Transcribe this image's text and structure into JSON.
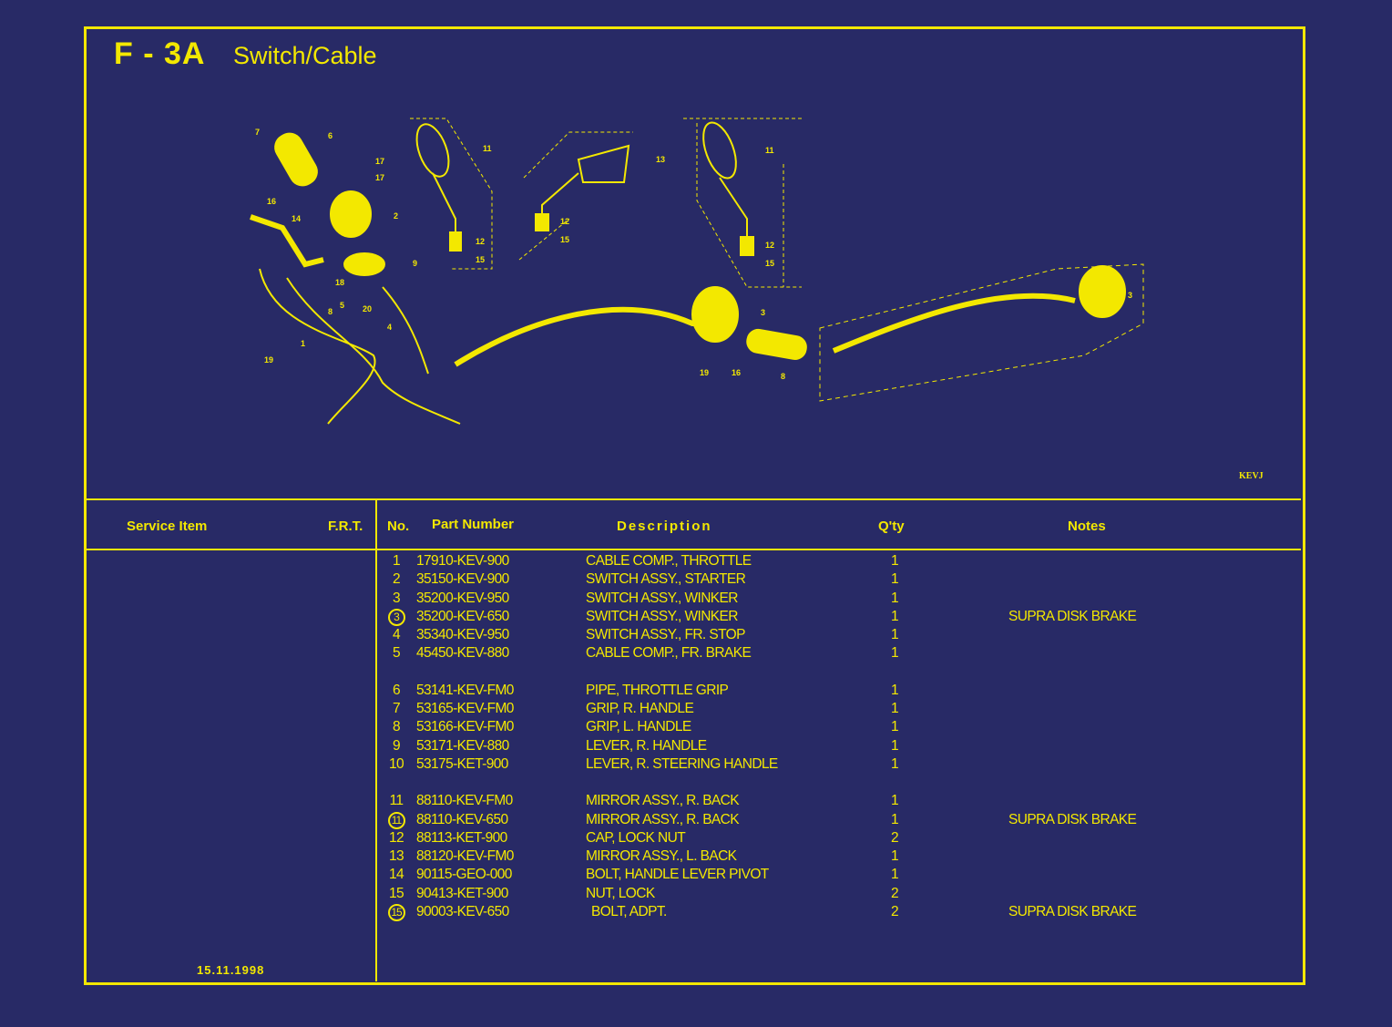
{
  "header": {
    "code": "F - 3A",
    "title": "Switch/Cable"
  },
  "diagram": {
    "code": "KEVJ",
    "callouts": [
      "7",
      "6",
      "17",
      "17",
      "16",
      "14",
      "2",
      "11",
      "12",
      "15",
      "13",
      "12",
      "15",
      "11",
      "12",
      "15",
      "9",
      "18",
      "5",
      "20",
      "4",
      "1",
      "19",
      "8",
      "3",
      "19",
      "16",
      "8",
      "3"
    ]
  },
  "table": {
    "headers": {
      "service_item": "Service Item",
      "frt": "F.R.T.",
      "no": "No.",
      "part_number": "Part Number",
      "description": "Description",
      "qty": "Q'ty",
      "notes": "Notes"
    },
    "groups": [
      [
        {
          "no": "1",
          "circled": false,
          "part_number": "17910-KEV-900",
          "description": "CABLE COMP., THROTTLE",
          "qty": "1",
          "notes": ""
        },
        {
          "no": "2",
          "circled": false,
          "part_number": "35150-KEV-900",
          "description": "SWITCH ASSY., STARTER",
          "qty": "1",
          "notes": ""
        },
        {
          "no": "3",
          "circled": false,
          "part_number": "35200-KEV-950",
          "description": "SWITCH ASSY., WINKER",
          "qty": "1",
          "notes": ""
        },
        {
          "no": "3",
          "circled": true,
          "part_number": "35200-KEV-650",
          "description": "SWITCH ASSY., WINKER",
          "qty": "1",
          "notes": "SUPRA DISK BRAKE"
        },
        {
          "no": "4",
          "circled": false,
          "part_number": "35340-KEV-950",
          "description": "SWITCH ASSY., FR. STOP",
          "qty": "1",
          "notes": ""
        },
        {
          "no": "5",
          "circled": false,
          "part_number": "45450-KEV-880",
          "description": "CABLE COMP., FR. BRAKE",
          "qty": "1",
          "notes": ""
        }
      ],
      [
        {
          "no": "6",
          "circled": false,
          "part_number": "53141-KEV-FM0",
          "description": "PIPE, THROTTLE GRIP",
          "qty": "1",
          "notes": ""
        },
        {
          "no": "7",
          "circled": false,
          "part_number": "53165-KEV-FM0",
          "description": "GRIP, R. HANDLE",
          "qty": "1",
          "notes": ""
        },
        {
          "no": "8",
          "circled": false,
          "part_number": "53166-KEV-FM0",
          "description": "GRIP, L. HANDLE",
          "qty": "1",
          "notes": ""
        },
        {
          "no": "9",
          "circled": false,
          "part_number": "53171-KEV-880",
          "description": "LEVER, R. HANDLE",
          "qty": "1",
          "notes": ""
        },
        {
          "no": "10",
          "circled": false,
          "part_number": "53175-KET-900",
          "description": "LEVER, R. STEERING HANDLE",
          "qty": "1",
          "notes": ""
        }
      ],
      [
        {
          "no": "11",
          "circled": false,
          "part_number": "88110-KEV-FM0",
          "description": "MIRROR ASSY., R. BACK",
          "qty": "1",
          "notes": ""
        },
        {
          "no": "11",
          "circled": true,
          "part_number": "88110-KEV-650",
          "description": "MIRROR ASSY., R. BACK",
          "qty": "1",
          "notes": "SUPRA DISK BRAKE"
        },
        {
          "no": "12",
          "circled": false,
          "part_number": "88113-KET-900",
          "description": "CAP, LOCK NUT",
          "qty": "2",
          "notes": ""
        },
        {
          "no": "13",
          "circled": false,
          "part_number": "88120-KEV-FM0",
          "description": "MIRROR ASSY., L. BACK",
          "qty": "1",
          "notes": ""
        },
        {
          "no": "14",
          "circled": false,
          "part_number": "90115-GEO-000",
          "description": "BOLT, HANDLE LEVER PIVOT",
          "qty": "1",
          "notes": ""
        },
        {
          "no": "15",
          "circled": false,
          "part_number": "90413-KET-900",
          "description": "NUT, LOCK",
          "qty": "2",
          "notes": ""
        },
        {
          "no": "15",
          "circled": true,
          "part_number": "90003-KEV-650",
          "description": "BOLT, ADPT.",
          "qty": "2",
          "notes": "SUPRA DISK BRAKE"
        }
      ]
    ],
    "date": "15.11.1998"
  },
  "colors": {
    "background": "#282a66",
    "ink": "#f3e800"
  }
}
